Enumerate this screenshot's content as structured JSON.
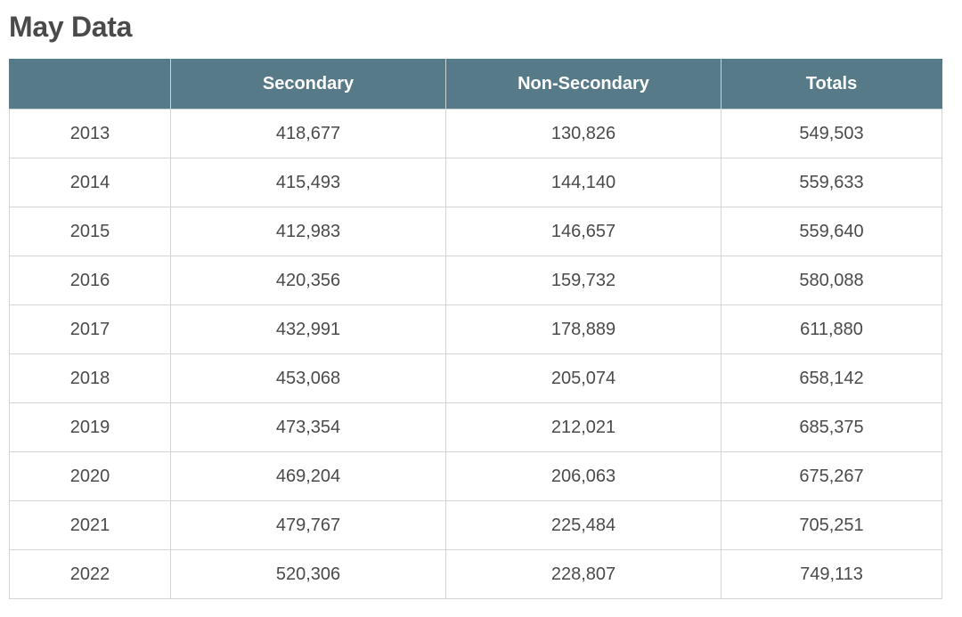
{
  "title": "May Data",
  "table": {
    "headers": [
      "",
      "Secondary",
      "Non-Secondary",
      "Totals"
    ],
    "rows": [
      [
        "2013",
        "418,677",
        "130,826",
        "549,503"
      ],
      [
        "2014",
        "415,493",
        "144,140",
        "559,633"
      ],
      [
        "2015",
        "412,983",
        "146,657",
        "559,640"
      ],
      [
        "2016",
        "420,356",
        "159,732",
        "580,088"
      ],
      [
        "2017",
        "432,991",
        "178,889",
        "611,880"
      ],
      [
        "2018",
        "453,068",
        "205,074",
        "658,142"
      ],
      [
        "2019",
        "473,354",
        "212,021",
        "685,375"
      ],
      [
        "2020",
        "469,204",
        "206,063",
        "675,267"
      ],
      [
        "2021",
        "479,767",
        "225,484",
        "705,251"
      ],
      [
        "2022",
        "520,306",
        "228,807",
        "749,113"
      ]
    ]
  },
  "colors": {
    "header_background": "#567a88",
    "header_text": "#ffffff",
    "body_text": "#4a4a4a",
    "grid_lines": "#d4d4d4"
  }
}
